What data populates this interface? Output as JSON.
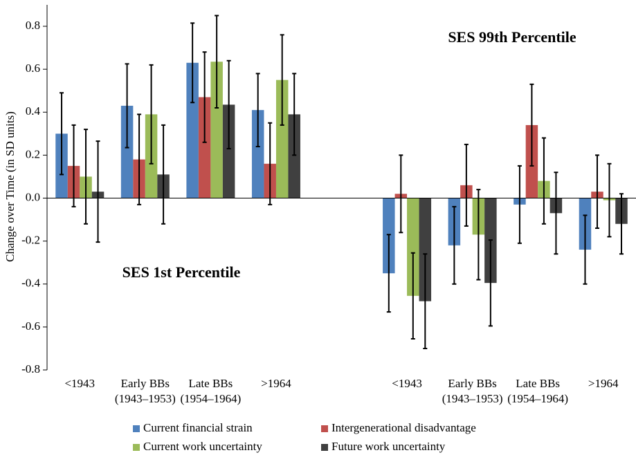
{
  "chart_data": {
    "type": "bar",
    "y_label": "Change over Time (in SD units)",
    "annotations": [
      "SES 99th Percentile",
      "SES 1st Percentile"
    ],
    "categories": [
      [
        "<1943"
      ],
      [
        "Early BBs",
        "(1943–1953)"
      ],
      [
        "Late BBs",
        "(1954–1964)"
      ],
      [
        ">1964"
      ],
      null,
      [
        "<1943"
      ],
      [
        "Early BBs",
        "(1943–1953)"
      ],
      [
        "Late BBs",
        "(1954–1964)"
      ],
      [
        ">1964"
      ]
    ],
    "series": [
      {
        "name": "Current financial strain",
        "color": "#4f81bd",
        "values": [
          0.3,
          0.43,
          0.63,
          0.41,
          null,
          -0.35,
          -0.22,
          -0.03,
          -0.24
        ],
        "errors": [
          0.19,
          0.195,
          0.185,
          0.17,
          null,
          0.18,
          0.18,
          0.18,
          0.16
        ]
      },
      {
        "name": "Intergenerational disadvantage",
        "color": "#c0504d",
        "values": [
          0.15,
          0.18,
          0.47,
          0.16,
          null,
          0.02,
          0.06,
          0.34,
          0.03
        ],
        "errors": [
          0.19,
          0.21,
          0.21,
          0.19,
          null,
          0.18,
          0.19,
          0.19,
          0.17
        ]
      },
      {
        "name": "Current work uncertainty",
        "color": "#9bbb59",
        "values": [
          0.1,
          0.39,
          0.635,
          0.55,
          null,
          -0.455,
          -0.17,
          0.08,
          -0.01
        ],
        "errors": [
          0.22,
          0.23,
          0.215,
          0.21,
          null,
          0.2,
          0.21,
          0.2,
          0.17
        ]
      },
      {
        "name": "Future work uncertainty",
        "color": "#404040",
        "values": [
          0.03,
          0.11,
          0.435,
          0.39,
          null,
          -0.48,
          -0.395,
          -0.07,
          -0.12
        ],
        "errors": [
          0.235,
          0.23,
          0.205,
          0.19,
          null,
          0.22,
          0.2,
          0.19,
          0.14
        ]
      }
    ],
    "ylim": [
      -0.8,
      0.9
    ],
    "yticks": [
      -0.8,
      -0.6,
      -0.4,
      -0.2,
      {
        "value": 0,
        "label": "0.0"
      },
      0.2,
      0.4,
      0.6,
      0.8
    ]
  }
}
